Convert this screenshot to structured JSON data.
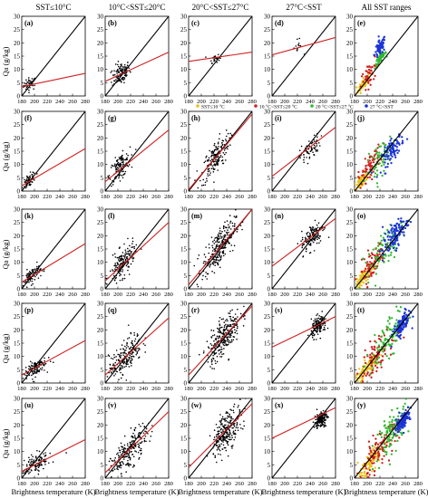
{
  "figure": {
    "column_headers": [
      "SST≤10°C",
      "10°C<SST≤20°C",
      "20°C<SST≤27°C",
      "27°C<SST",
      "All SST ranges"
    ],
    "x_axis_label": "Brightness temperature (K)",
    "y_axis_label": "Qa (g/kg)",
    "x_ticks": [
      180,
      200,
      220,
      240,
      260,
      280
    ],
    "y_ticks": [
      0,
      5,
      10,
      15,
      20,
      25,
      30
    ],
    "legend": [
      {
        "label": "SST≤10 °C",
        "color": "#e8c21a"
      },
      {
        "label": "10 °C<SST≤20 °C",
        "color": "#d01f1f"
      },
      {
        "label": "20 °C<SST≤27 °C",
        "color": "#2fb82f"
      },
      {
        "label": "27 °C<SST",
        "color": "#1b33d6"
      }
    ]
  },
  "chart_data": {
    "type": "scatter",
    "xlim": [
      180,
      280
    ],
    "ylim": [
      0,
      30
    ],
    "grid": false,
    "one_to_one_line": {
      "color": "#000000",
      "points": [
        [
          180,
          0
        ],
        [
          280,
          30
        ]
      ]
    },
    "fit_line_color": "#d01f1f",
    "panels": [
      {
        "label": "(a)",
        "row": 0,
        "col": 0,
        "center": [
          193,
          4.5
        ],
        "spread": [
          5,
          1.2
        ],
        "n": 45,
        "fit": [
          [
            180,
            3.5
          ],
          [
            280,
            8.5
          ]
        ]
      },
      {
        "label": "(b)",
        "row": 0,
        "col": 1,
        "center": [
          205,
          8.5
        ],
        "spread": [
          7,
          2.0
        ],
        "n": 120,
        "fit": [
          [
            180,
            5.5
          ],
          [
            280,
            16.5
          ]
        ]
      },
      {
        "label": "(c)",
        "row": 0,
        "col": 2,
        "center": [
          221,
          14.2
        ],
        "spread": [
          4,
          0.8
        ],
        "n": 25,
        "fit": [
          [
            180,
            13.0
          ],
          [
            280,
            16.5
          ]
        ]
      },
      {
        "label": "(d)",
        "row": 0,
        "col": 3,
        "center": [
          220,
          18.0
        ],
        "spread": [
          4,
          1.5
        ],
        "n": 12,
        "fit": [
          [
            180,
            15.5
          ],
          [
            280,
            22.0
          ]
        ]
      },
      {
        "label": "(e)",
        "row": 0,
        "col": 4,
        "combined": true,
        "n": 200,
        "fit": null
      },
      {
        "label": "(f)",
        "row": 1,
        "col": 0,
        "center": [
          192,
          4.0
        ],
        "spread": [
          5,
          1.2
        ],
        "n": 60,
        "fit": [
          [
            180,
            2.0
          ],
          [
            280,
            16.0
          ]
        ]
      },
      {
        "label": "(g)",
        "row": 1,
        "col": 1,
        "center": [
          203,
          9.0
        ],
        "spread": [
          8,
          2.2
        ],
        "n": 130,
        "fit": [
          [
            180,
            3.5
          ],
          [
            280,
            23.0
          ]
        ]
      },
      {
        "label": "(h)",
        "row": 1,
        "col": 2,
        "center": [
          222,
          12.5
        ],
        "spread": [
          11,
          3.0
        ],
        "n": 180,
        "fit": [
          [
            180,
            0.5
          ],
          [
            280,
            29.0
          ]
        ]
      },
      {
        "label": "(i)",
        "row": 1,
        "col": 3,
        "center": [
          240,
          15.5
        ],
        "spread": [
          8,
          2.0
        ],
        "n": 70,
        "fit": [
          [
            180,
            5.5
          ],
          [
            280,
            24.0
          ]
        ]
      },
      {
        "label": "(j)",
        "row": 1,
        "col": 4,
        "combined": true,
        "n": 260,
        "fit": null
      },
      {
        "label": "(k)",
        "row": 2,
        "col": 0,
        "center": [
          196,
          5.0
        ],
        "spread": [
          7,
          1.5
        ],
        "n": 90,
        "fit": [
          [
            180,
            2.5
          ],
          [
            280,
            17.0
          ]
        ]
      },
      {
        "label": "(l)",
        "row": 2,
        "col": 1,
        "center": [
          207,
          9.5
        ],
        "spread": [
          10,
          2.6
        ],
        "n": 170,
        "fit": [
          [
            180,
            3.0
          ],
          [
            280,
            25.0
          ]
        ]
      },
      {
        "label": "(m)",
        "row": 2,
        "col": 2,
        "center": [
          228,
          15.5
        ],
        "spread": [
          13,
          3.4
        ],
        "n": 260,
        "fit": [
          [
            180,
            1.5
          ],
          [
            280,
            30.0
          ]
        ]
      },
      {
        "label": "(n)",
        "row": 2,
        "col": 3,
        "center": [
          244,
          20.0
        ],
        "spread": [
          9,
          2.4
        ],
        "n": 130,
        "fit": [
          [
            180,
            8.5
          ],
          [
            280,
            26.5
          ]
        ]
      },
      {
        "label": "(o)",
        "row": 2,
        "col": 4,
        "combined": true,
        "n": 330,
        "fit": null
      },
      {
        "label": "(p)",
        "row": 3,
        "col": 0,
        "center": [
          200,
          5.5
        ],
        "spread": [
          9,
          1.6
        ],
        "n": 110,
        "fit": [
          [
            180,
            3.0
          ],
          [
            280,
            16.0
          ]
        ]
      },
      {
        "label": "(q)",
        "row": 3,
        "col": 1,
        "center": [
          212,
          10.0
        ],
        "spread": [
          13,
          3.0
        ],
        "n": 200,
        "fit": [
          [
            180,
            3.0
          ],
          [
            280,
            24.5
          ]
        ]
      },
      {
        "label": "(r)",
        "row": 3,
        "col": 2,
        "center": [
          235,
          17.5
        ],
        "spread": [
          13,
          3.5
        ],
        "n": 260,
        "fit": [
          [
            180,
            3.0
          ],
          [
            280,
            29.0
          ]
        ]
      },
      {
        "label": "(s)",
        "row": 3,
        "col": 3,
        "center": [
          254,
          21.5
        ],
        "spread": [
          6,
          1.8
        ],
        "n": 150,
        "fit": [
          [
            180,
            13.5
          ],
          [
            280,
            25.0
          ]
        ]
      },
      {
        "label": "(t)",
        "row": 3,
        "col": 4,
        "combined": true,
        "n": 380,
        "fit": null
      },
      {
        "label": "(u)",
        "row": 4,
        "col": 0,
        "center": [
          203,
          5.5
        ],
        "spread": [
          11,
          1.8
        ],
        "n": 130,
        "fit": [
          [
            180,
            2.5
          ],
          [
            280,
            14.5
          ]
        ]
      },
      {
        "label": "(v)",
        "row": 4,
        "col": 1,
        "center": [
          218,
          10.0
        ],
        "spread": [
          14,
          3.0
        ],
        "n": 220,
        "fit": [
          [
            180,
            2.0
          ],
          [
            280,
            25.0
          ]
        ]
      },
      {
        "label": "(w)",
        "row": 4,
        "col": 2,
        "center": [
          240,
          18.0
        ],
        "spread": [
          12,
          3.5
        ],
        "n": 260,
        "fit": [
          [
            180,
            4.0
          ],
          [
            280,
            28.0
          ]
        ]
      },
      {
        "label": "(x)",
        "row": 4,
        "col": 3,
        "center": [
          257,
          22.0
        ],
        "spread": [
          5,
          1.5
        ],
        "n": 150,
        "fit": [
          [
            180,
            15.0
          ],
          [
            280,
            26.5
          ]
        ]
      },
      {
        "label": "(y)",
        "row": 4,
        "col": 4,
        "combined": true,
        "n": 400,
        "fit": null
      }
    ]
  }
}
